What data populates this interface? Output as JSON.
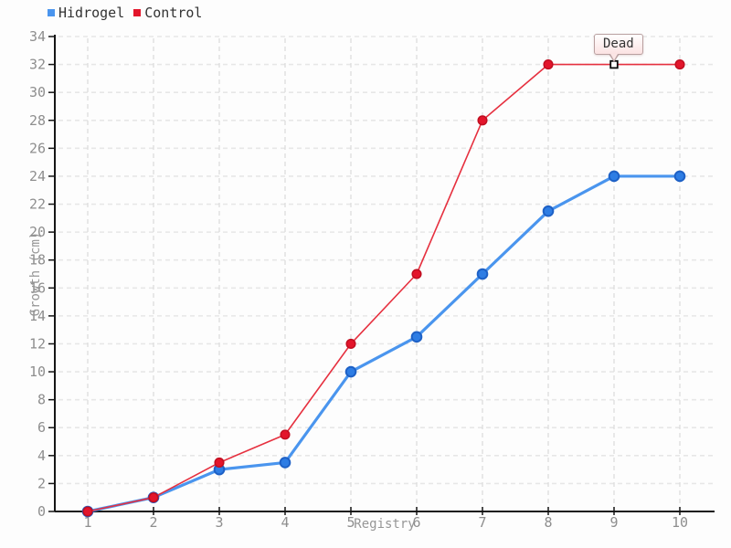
{
  "chart_data": {
    "type": "line",
    "title": "",
    "xlabel": "Registry",
    "ylabel": "Growth (cm)",
    "x": [
      1,
      2,
      3,
      4,
      5,
      6,
      7,
      8,
      9,
      10
    ],
    "xlim": [
      1,
      10
    ],
    "ylim": [
      0,
      34
    ],
    "y_tick_step": 2,
    "grid": true,
    "legend_position": "top-left",
    "series": [
      {
        "name": "Hidrogel",
        "line_color": "#4a95ee",
        "marker_fill": "#2e7de4",
        "marker_stroke": "#1e61c6",
        "line_width": 3.2,
        "marker_radius": 5.3,
        "values": [
          0,
          1,
          3,
          3.5,
          10,
          12.5,
          17,
          21.5,
          24,
          24
        ]
      },
      {
        "name": "Control",
        "line_color": "#e6303f",
        "marker_fill": "#e3152b",
        "marker_stroke": "#c00e20",
        "line_width": 1.6,
        "marker_radius": 4.8,
        "values": [
          0,
          1,
          3.5,
          5.5,
          12,
          17,
          28,
          32,
          32,
          32
        ]
      }
    ],
    "annotation": {
      "label": "Dead",
      "series": "Control",
      "x": 9,
      "y": 32,
      "marker": "white-square"
    },
    "style": {
      "h_grid_color": "#e7e7e7",
      "v_grid_color": "#dcdcdc",
      "axis_color": "#151515",
      "tick_label_color": "#8e8e8e"
    }
  }
}
